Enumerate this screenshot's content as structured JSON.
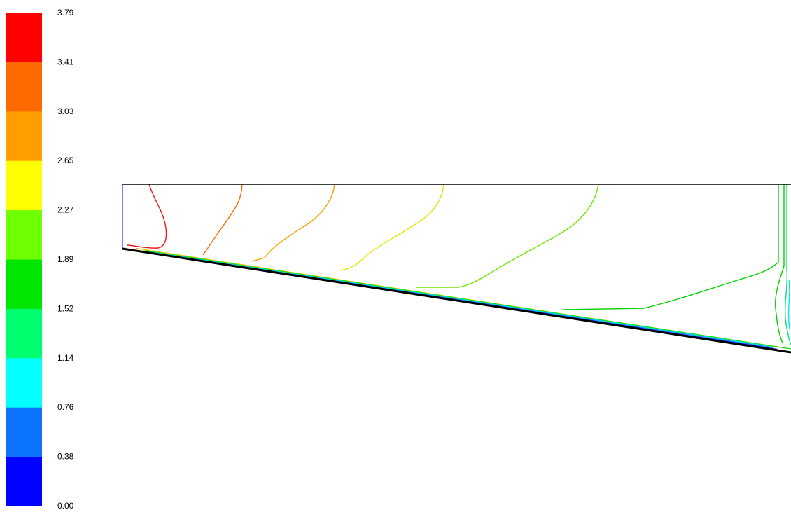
{
  "chart_data": {
    "type": "contour",
    "title": "",
    "legend": {
      "placement": "left",
      "tick_labels": [
        "0.00",
        "0.38",
        "0.76",
        "1.14",
        "1.52",
        "1.89",
        "2.27",
        "2.65",
        "3.03",
        "3.41",
        "3.79"
      ],
      "colors": [
        "#0000ff",
        "#0d74ff",
        "#00ffff",
        "#00ff6e",
        "#00e600",
        "#6eff00",
        "#ffff00",
        "#ff9e00",
        "#ff6a00",
        "#ff0000"
      ]
    },
    "levels": [
      {
        "value": 3.41,
        "color": "#e61a1a"
      },
      {
        "value": 3.03,
        "color": "#ff6a00"
      },
      {
        "value": 2.65,
        "color": "#ff9e00"
      },
      {
        "value": 2.27,
        "color": "#e6e600"
      },
      {
        "value": 1.89,
        "color": "#6ee600"
      },
      {
        "value": 1.52,
        "color": "#00d200"
      },
      {
        "value": 1.14,
        "color": "#00e678"
      },
      {
        "value": 0.76,
        "color": "#00e6e6"
      },
      {
        "value": 0.38,
        "color": "#1f7dff"
      },
      {
        "value": 0.0,
        "color": "#0000ff"
      }
    ]
  }
}
